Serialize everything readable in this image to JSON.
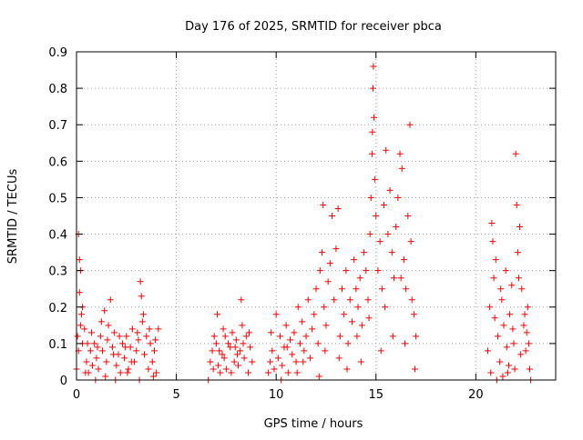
{
  "chart_data": {
    "type": "scatter",
    "title": "Day 176 of 2025, SRMTID for receiver pbca",
    "xlabel": "GPS time / hours",
    "ylabel": "SRMTID / TECUs",
    "xlim": [
      0,
      24
    ],
    "ylim": [
      0,
      0.9
    ],
    "x_ticks": [
      0,
      5,
      10,
      15,
      20
    ],
    "x_tick_labels": [
      "0",
      "5",
      "10",
      "15",
      "20"
    ],
    "y_ticks": [
      0,
      0.1,
      0.2,
      0.3,
      0.4,
      0.5,
      0.6,
      0.7,
      0.8,
      0.9
    ],
    "y_tick_labels": [
      "0",
      "0.1",
      "0.2",
      "0.3",
      "0.4",
      "0.5",
      "0.6",
      "0.7",
      "0.8",
      "0.9"
    ],
    "grid": true,
    "legend": "none",
    "marker": "+",
    "series": [
      {
        "color": "#ff0000",
        "points": [
          [
            0.0,
            0.03
          ],
          [
            0.05,
            0.12
          ],
          [
            0.1,
            0.4
          ],
          [
            0.15,
            0.24
          ],
          [
            0.15,
            0.33
          ],
          [
            0.2,
            0.3
          ],
          [
            0.25,
            0.18
          ],
          [
            0.3,
            0.2
          ],
          [
            0.1,
            0.08
          ],
          [
            0.2,
            0.15
          ],
          [
            0.3,
            0.1
          ],
          [
            0.4,
            0.14
          ],
          [
            0.5,
            0.05
          ],
          [
            0.6,
            0.02
          ],
          [
            0.7,
            0.08
          ],
          [
            0.8,
            0.04
          ],
          [
            0.9,
            0.1
          ],
          [
            1.0,
            0.06
          ],
          [
            1.1,
            0.03
          ],
          [
            1.2,
            0.12
          ],
          [
            1.3,
            0.08
          ],
          [
            1.4,
            0.19
          ],
          [
            1.5,
            0.05
          ],
          [
            1.6,
            0.15
          ],
          [
            1.7,
            0.22
          ],
          [
            1.8,
            0.09
          ],
          [
            1.9,
            0.13
          ],
          [
            2.0,
            0.04
          ],
          [
            2.1,
            0.07
          ],
          [
            2.2,
            0.02
          ],
          [
            2.3,
            0.1
          ],
          [
            2.4,
            0.06
          ],
          [
            2.5,
            0.12
          ],
          [
            2.6,
            0.03
          ],
          [
            2.7,
            0.09
          ],
          [
            2.8,
            0.14
          ],
          [
            2.9,
            0.05
          ],
          [
            3.0,
            0.08
          ],
          [
            3.1,
            0.11
          ],
          [
            3.2,
            0.27
          ],
          [
            3.25,
            0.23
          ],
          [
            3.3,
            0.16
          ],
          [
            3.4,
            0.07
          ],
          [
            3.5,
            0.12
          ],
          [
            3.6,
            0.03
          ],
          [
            3.7,
            0.1
          ],
          [
            3.8,
            0.05
          ],
          [
            3.9,
            0.08
          ],
          [
            4.0,
            0.02
          ],
          [
            4.1,
            0.14
          ],
          [
            0.55,
            0.1
          ],
          [
            0.75,
            0.13
          ],
          [
            1.05,
            0.09
          ],
          [
            1.25,
            0.16
          ],
          [
            1.55,
            0.11
          ],
          [
            1.85,
            0.07
          ],
          [
            2.15,
            0.12
          ],
          [
            2.45,
            0.09
          ],
          [
            2.75,
            0.05
          ],
          [
            3.05,
            0.13
          ],
          [
            3.35,
            0.18
          ],
          [
            3.65,
            0.14
          ],
          [
            3.95,
            0.11
          ],
          [
            0.45,
            0.02
          ],
          [
            0.95,
            0.0
          ],
          [
            1.45,
            0.01
          ],
          [
            1.95,
            0.0
          ],
          [
            2.55,
            0.02
          ],
          [
            3.15,
            0.0
          ],
          [
            3.85,
            0.01
          ],
          [
            6.6,
            0.0
          ],
          [
            6.7,
            0.05
          ],
          [
            6.8,
            0.08
          ],
          [
            6.9,
            0.12
          ],
          [
            7.0,
            0.1
          ],
          [
            7.05,
            0.18
          ],
          [
            7.1,
            0.04
          ],
          [
            7.2,
            0.02
          ],
          [
            7.3,
            0.07
          ],
          [
            7.4,
            0.06
          ],
          [
            7.5,
            0.03
          ],
          [
            7.6,
            0.1
          ],
          [
            7.7,
            0.09
          ],
          [
            7.8,
            0.13
          ],
          [
            7.9,
            0.05
          ],
          [
            8.0,
            0.11
          ],
          [
            8.1,
            0.04
          ],
          [
            8.2,
            0.08
          ],
          [
            8.25,
            0.22
          ],
          [
            8.3,
            0.15
          ],
          [
            8.4,
            0.06
          ],
          [
            8.5,
            0.12
          ],
          [
            8.6,
            0.02
          ],
          [
            8.7,
            0.09
          ],
          [
            8.8,
            0.05
          ],
          [
            6.85,
            0.03
          ],
          [
            7.15,
            0.08
          ],
          [
            7.45,
            0.12
          ],
          [
            7.75,
            0.02
          ],
          [
            8.05,
            0.07
          ],
          [
            8.35,
            0.1
          ],
          [
            8.65,
            0.13
          ],
          [
            7.35,
            0.14
          ],
          [
            7.95,
            0.09
          ],
          [
            9.6,
            0.02
          ],
          [
            9.7,
            0.05
          ],
          [
            9.8,
            0.08
          ],
          [
            9.9,
            0.03
          ],
          [
            10.0,
            0.18
          ],
          [
            10.1,
            0.06
          ],
          [
            10.2,
            0.12
          ],
          [
            10.3,
            0.04
          ],
          [
            10.4,
            0.09
          ],
          [
            10.5,
            0.15
          ],
          [
            10.6,
            0.02
          ],
          [
            10.7,
            0.11
          ],
          [
            10.8,
            0.07
          ],
          [
            10.9,
            0.13
          ],
          [
            11.0,
            0.05
          ],
          [
            11.1,
            0.2
          ],
          [
            11.2,
            0.1
          ],
          [
            11.3,
            0.16
          ],
          [
            11.4,
            0.08
          ],
          [
            11.5,
            0.12
          ],
          [
            11.6,
            0.22
          ],
          [
            11.7,
            0.06
          ],
          [
            11.8,
            0.14
          ],
          [
            11.9,
            0.18
          ],
          [
            12.0,
            0.25
          ],
          [
            12.1,
            0.1
          ],
          [
            12.2,
            0.3
          ],
          [
            12.3,
            0.35
          ],
          [
            12.35,
            0.48
          ],
          [
            12.4,
            0.2
          ],
          [
            12.5,
            0.15
          ],
          [
            12.6,
            0.27
          ],
          [
            12.7,
            0.32
          ],
          [
            12.8,
            0.45
          ],
          [
            12.9,
            0.22
          ],
          [
            13.0,
            0.36
          ],
          [
            13.1,
            0.47
          ],
          [
            13.2,
            0.12
          ],
          [
            13.3,
            0.25
          ],
          [
            13.4,
            0.18
          ],
          [
            13.5,
            0.3
          ],
          [
            13.6,
            0.1
          ],
          [
            13.7,
            0.22
          ],
          [
            13.8,
            0.16
          ],
          [
            13.9,
            0.33
          ],
          [
            14.0,
            0.25
          ],
          [
            14.1,
            0.2
          ],
          [
            14.2,
            0.28
          ],
          [
            14.3,
            0.15
          ],
          [
            14.4,
            0.35
          ],
          [
            14.5,
            0.3
          ],
          [
            14.6,
            0.22
          ],
          [
            14.7,
            0.4
          ],
          [
            14.75,
            0.5
          ],
          [
            14.8,
            0.62
          ],
          [
            14.82,
            0.68
          ],
          [
            14.85,
            0.8
          ],
          [
            14.87,
            0.86
          ],
          [
            14.9,
            0.72
          ],
          [
            14.95,
            0.55
          ],
          [
            15.0,
            0.45
          ],
          [
            15.1,
            0.3
          ],
          [
            15.2,
            0.38
          ],
          [
            15.3,
            0.25
          ],
          [
            15.4,
            0.48
          ],
          [
            15.5,
            0.63
          ],
          [
            15.6,
            0.4
          ],
          [
            15.7,
            0.52
          ],
          [
            15.8,
            0.35
          ],
          [
            15.9,
            0.28
          ],
          [
            16.0,
            0.42
          ],
          [
            16.1,
            0.5
          ],
          [
            16.2,
            0.62
          ],
          [
            16.3,
            0.58
          ],
          [
            16.4,
            0.33
          ],
          [
            16.5,
            0.25
          ],
          [
            16.6,
            0.45
          ],
          [
            16.7,
            0.7
          ],
          [
            16.8,
            0.22
          ],
          [
            16.9,
            0.18
          ],
          [
            17.0,
            0.12
          ],
          [
            16.95,
            0.03
          ],
          [
            10.25,
            0.0
          ],
          [
            11.05,
            0.02
          ],
          [
            12.15,
            0.01
          ],
          [
            13.55,
            0.03
          ],
          [
            14.25,
            0.05
          ],
          [
            15.25,
            0.08
          ],
          [
            15.85,
            0.12
          ],
          [
            16.45,
            0.1
          ],
          [
            9.75,
            0.13
          ],
          [
            10.55,
            0.09
          ],
          [
            11.35,
            0.05
          ],
          [
            12.45,
            0.08
          ],
          [
            13.15,
            0.06
          ],
          [
            14.05,
            0.12
          ],
          [
            14.65,
            0.17
          ],
          [
            15.45,
            0.2
          ],
          [
            16.25,
            0.28
          ],
          [
            16.75,
            0.38
          ],
          [
            20.6,
            0.08
          ],
          [
            20.7,
            0.2
          ],
          [
            20.8,
            0.43
          ],
          [
            20.85,
            0.38
          ],
          [
            20.9,
            0.28
          ],
          [
            21.0,
            0.33
          ],
          [
            21.1,
            0.12
          ],
          [
            21.2,
            0.05
          ],
          [
            21.3,
            0.22
          ],
          [
            21.4,
            0.15
          ],
          [
            21.5,
            0.3
          ],
          [
            21.6,
            0.02
          ],
          [
            21.7,
            0.18
          ],
          [
            21.8,
            0.26
          ],
          [
            21.9,
            0.1
          ],
          [
            22.0,
            0.62
          ],
          [
            22.05,
            0.48
          ],
          [
            22.1,
            0.35
          ],
          [
            22.2,
            0.42
          ],
          [
            22.3,
            0.25
          ],
          [
            22.4,
            0.15
          ],
          [
            22.5,
            0.08
          ],
          [
            22.6,
            0.2
          ],
          [
            22.7,
            0.03
          ],
          [
            22.75,
            0.0
          ],
          [
            20.75,
            0.02
          ],
          [
            21.05,
            0.0
          ],
          [
            21.35,
            0.01
          ],
          [
            21.65,
            0.04
          ],
          [
            21.95,
            0.03
          ],
          [
            22.25,
            0.07
          ],
          [
            22.55,
            0.13
          ],
          [
            20.95,
            0.17
          ],
          [
            21.25,
            0.25
          ],
          [
            21.55,
            0.09
          ],
          [
            21.85,
            0.14
          ],
          [
            22.15,
            0.28
          ],
          [
            22.45,
            0.18
          ],
          [
            22.65,
            0.1
          ]
        ]
      }
    ]
  }
}
